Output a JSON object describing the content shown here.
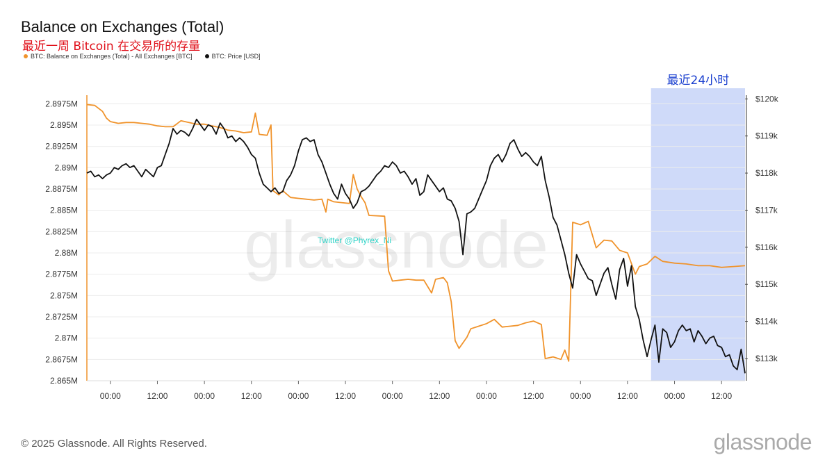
{
  "header": {
    "title": "Balance on Exchanges (Total)",
    "subtitle": "最近一周 Bitcoin 在交易所的存量"
  },
  "legend": [
    {
      "label": "BTC: Balance on Exchanges (Total) - All Exchanges [BTC]",
      "color": "#f0932b"
    },
    {
      "label": "BTC: Price [USD]",
      "color": "#111111"
    }
  ],
  "footer": {
    "copyright": "© 2025 Glassnode. All Rights Reserved.",
    "logo": "glassnode"
  },
  "watermark": {
    "text": "glassnode",
    "twitter": "Twitter @Phyrex_Ni"
  },
  "highlight": {
    "label": "最近24小时",
    "x_start_index": 52,
    "color": "#c7d3f8"
  },
  "chart_data": {
    "type": "line",
    "x_tick_labels": [
      "00:00",
      "12:00",
      "00:00",
      "12:00",
      "00:00",
      "12:00",
      "00:00",
      "12:00",
      "00:00",
      "12:00",
      "00:00",
      "12:00",
      "00:00",
      "12:00",
      "00:00",
      "12:00"
    ],
    "x_unit": "hours since start",
    "x_range": [
      0,
      168
    ],
    "left_axis": {
      "ticks": [
        "2.8975M",
        "2.895M",
        "2.8925M",
        "2.89M",
        "2.8875M",
        "2.885M",
        "2.8825M",
        "2.88M",
        "2.8775M",
        "2.875M",
        "2.8725M",
        "2.87M",
        "2.8675M",
        "2.865M"
      ],
      "range": [
        2865000,
        2898500
      ]
    },
    "right_axis": {
      "ticks": [
        "$120k",
        "$119k",
        "$118k",
        "$117k",
        "$116k",
        "$115k",
        "$114k",
        "$113k"
      ],
      "range": [
        112400,
        120100
      ]
    },
    "series": [
      {
        "name": "BTC: Balance on Exchanges (Total) - All Exchanges [BTC]",
        "axis": "left",
        "color": "#f0932b",
        "points": [
          [
            0,
            2897400
          ],
          [
            2,
            2897300
          ],
          [
            4,
            2896600
          ],
          [
            5,
            2895800
          ],
          [
            6,
            2895400
          ],
          [
            8,
            2895200
          ],
          [
            10,
            2895300
          ],
          [
            12,
            2895300
          ],
          [
            14,
            2895200
          ],
          [
            16,
            2895100
          ],
          [
            18,
            2894900
          ],
          [
            20,
            2894800
          ],
          [
            22,
            2894800
          ],
          [
            24,
            2895500
          ],
          [
            26,
            2895300
          ],
          [
            28,
            2895100
          ],
          [
            30,
            2895100
          ],
          [
            32,
            2894900
          ],
          [
            34,
            2894700
          ],
          [
            36,
            2894400
          ],
          [
            38,
            2894300
          ],
          [
            40,
            2894100
          ],
          [
            42,
            2894200
          ],
          [
            43,
            2896400
          ],
          [
            44,
            2893900
          ],
          [
            46,
            2893800
          ],
          [
            47,
            2895000
          ],
          [
            47.5,
            2887300
          ],
          [
            49,
            2886800
          ],
          [
            50,
            2887300
          ],
          [
            52,
            2886500
          ],
          [
            54,
            2886400
          ],
          [
            56,
            2886300
          ],
          [
            58,
            2886200
          ],
          [
            60,
            2886300
          ],
          [
            61,
            2884800
          ],
          [
            61.5,
            2886300
          ],
          [
            63,
            2886000
          ],
          [
            65,
            2885900
          ],
          [
            67,
            2885800
          ],
          [
            68,
            2889200
          ],
          [
            69,
            2887500
          ],
          [
            70,
            2886600
          ],
          [
            71,
            2885900
          ],
          [
            72,
            2884400
          ],
          [
            76,
            2884300
          ],
          [
            77,
            2877900
          ],
          [
            78,
            2876700
          ],
          [
            80,
            2876800
          ],
          [
            82,
            2876900
          ],
          [
            84,
            2876800
          ],
          [
            86,
            2876800
          ],
          [
            88,
            2875300
          ],
          [
            89,
            2876900
          ],
          [
            91,
            2877100
          ],
          [
            92,
            2876500
          ],
          [
            93,
            2874300
          ],
          [
            94,
            2869700
          ],
          [
            95,
            2868800
          ],
          [
            97,
            2870100
          ],
          [
            98,
            2871100
          ],
          [
            100,
            2871400
          ],
          [
            102,
            2871700
          ],
          [
            104,
            2872200
          ],
          [
            106,
            2871300
          ],
          [
            108,
            2871400
          ],
          [
            110,
            2871500
          ],
          [
            112,
            2871800
          ],
          [
            114,
            2872000
          ],
          [
            116,
            2871600
          ],
          [
            117,
            2867600
          ],
          [
            119,
            2867800
          ],
          [
            121,
            2867500
          ],
          [
            122,
            2868600
          ],
          [
            123,
            2867300
          ],
          [
            124,
            2883600
          ],
          [
            126,
            2883300
          ],
          [
            128,
            2883700
          ],
          [
            130,
            2880600
          ],
          [
            132,
            2881500
          ],
          [
            134,
            2881400
          ],
          [
            136,
            2880300
          ],
          [
            138,
            2880000
          ],
          [
            140,
            2877500
          ],
          [
            141,
            2878400
          ],
          [
            143,
            2878700
          ],
          [
            145,
            2879600
          ],
          [
            147,
            2879000
          ],
          [
            150,
            2878800
          ],
          [
            153,
            2878700
          ],
          [
            156,
            2878500
          ],
          [
            159,
            2878500
          ],
          [
            162,
            2878300
          ],
          [
            165,
            2878400
          ],
          [
            168,
            2878500
          ]
        ]
      },
      {
        "name": "BTC: Price [USD]",
        "axis": "right",
        "color": "#111111",
        "points": [
          [
            0,
            118000
          ],
          [
            1,
            118050
          ],
          [
            2,
            117900
          ],
          [
            3,
            117950
          ],
          [
            4,
            117850
          ],
          [
            5,
            117950
          ],
          [
            6,
            118000
          ],
          [
            7,
            118150
          ],
          [
            8,
            118100
          ],
          [
            9,
            118200
          ],
          [
            10,
            118250
          ],
          [
            11,
            118150
          ],
          [
            12,
            118200
          ],
          [
            13,
            118050
          ],
          [
            14,
            117900
          ],
          [
            15,
            118100
          ],
          [
            16,
            118000
          ],
          [
            17,
            117900
          ],
          [
            18,
            118150
          ],
          [
            19,
            118200
          ],
          [
            20,
            118500
          ],
          [
            21,
            118800
          ],
          [
            22,
            119200
          ],
          [
            23,
            119050
          ],
          [
            24,
            119150
          ],
          [
            25,
            119100
          ],
          [
            26,
            119000
          ],
          [
            27,
            119200
          ],
          [
            28,
            119450
          ],
          [
            29,
            119300
          ],
          [
            30,
            119150
          ],
          [
            31,
            119300
          ],
          [
            32,
            119250
          ],
          [
            33,
            119050
          ],
          [
            34,
            119350
          ],
          [
            35,
            119200
          ],
          [
            36,
            118950
          ],
          [
            37,
            119000
          ],
          [
            38,
            118850
          ],
          [
            39,
            118950
          ],
          [
            40,
            118850
          ],
          [
            41,
            118700
          ],
          [
            42,
            118500
          ],
          [
            43,
            118400
          ],
          [
            44,
            118000
          ],
          [
            45,
            117700
          ],
          [
            46,
            117600
          ],
          [
            47,
            117500
          ],
          [
            48,
            117600
          ],
          [
            49,
            117450
          ],
          [
            50,
            117500
          ],
          [
            51,
            117800
          ],
          [
            52,
            117950
          ],
          [
            53,
            118200
          ],
          [
            54,
            118600
          ],
          [
            55,
            118900
          ],
          [
            56,
            118950
          ],
          [
            57,
            118850
          ],
          [
            58,
            118900
          ],
          [
            59,
            118500
          ],
          [
            60,
            118300
          ],
          [
            61,
            118000
          ],
          [
            62,
            117700
          ],
          [
            63,
            117450
          ],
          [
            64,
            117300
          ],
          [
            65,
            117700
          ],
          [
            66,
            117450
          ],
          [
            67,
            117300
          ],
          [
            68,
            117050
          ],
          [
            69,
            117200
          ],
          [
            70,
            117500
          ],
          [
            71,
            117550
          ],
          [
            72,
            117650
          ],
          [
            73,
            117800
          ],
          [
            74,
            117950
          ],
          [
            75,
            118050
          ],
          [
            76,
            118200
          ],
          [
            77,
            118150
          ],
          [
            78,
            118300
          ],
          [
            79,
            118200
          ],
          [
            80,
            118000
          ],
          [
            81,
            118050
          ],
          [
            82,
            117900
          ],
          [
            83,
            117700
          ],
          [
            84,
            117850
          ],
          [
            85,
            117400
          ],
          [
            86,
            117500
          ],
          [
            87,
            117950
          ],
          [
            88,
            117800
          ],
          [
            89,
            117650
          ],
          [
            90,
            117500
          ],
          [
            91,
            117600
          ],
          [
            92,
            117300
          ],
          [
            93,
            117250
          ],
          [
            94,
            117050
          ],
          [
            95,
            116700
          ],
          [
            96,
            115800
          ],
          [
            97,
            116900
          ],
          [
            98,
            116950
          ],
          [
            99,
            117050
          ],
          [
            100,
            117300
          ],
          [
            101,
            117550
          ],
          [
            102,
            117800
          ],
          [
            103,
            118200
          ],
          [
            104,
            118400
          ],
          [
            105,
            118500
          ],
          [
            106,
            118300
          ],
          [
            107,
            118500
          ],
          [
            108,
            118800
          ],
          [
            109,
            118900
          ],
          [
            110,
            118650
          ],
          [
            111,
            118450
          ],
          [
            112,
            118550
          ],
          [
            113,
            118450
          ],
          [
            114,
            118300
          ],
          [
            115,
            118200
          ],
          [
            116,
            118450
          ],
          [
            117,
            117800
          ],
          [
            118,
            117350
          ],
          [
            119,
            116800
          ],
          [
            120,
            116600
          ],
          [
            121,
            116200
          ],
          [
            122,
            115800
          ],
          [
            123,
            115300
          ],
          [
            124,
            114900
          ],
          [
            125,
            115800
          ],
          [
            126,
            115550
          ],
          [
            127,
            115350
          ],
          [
            128,
            115150
          ],
          [
            129,
            115100
          ],
          [
            130,
            114700
          ],
          [
            131,
            115000
          ],
          [
            132,
            115300
          ],
          [
            133,
            115450
          ],
          [
            134,
            115000
          ],
          [
            135,
            114600
          ],
          [
            136,
            115400
          ],
          [
            137,
            115700
          ],
          [
            138,
            114950
          ],
          [
            139,
            115500
          ],
          [
            140,
            114400
          ],
          [
            141,
            114050
          ],
          [
            142,
            113500
          ],
          [
            143,
            113050
          ],
          [
            144,
            113500
          ],
          [
            145,
            113900
          ],
          [
            146,
            112900
          ],
          [
            147,
            113800
          ],
          [
            148,
            113700
          ],
          [
            149,
            113300
          ],
          [
            150,
            113450
          ],
          [
            151,
            113750
          ],
          [
            152,
            113900
          ],
          [
            153,
            113750
          ],
          [
            154,
            113800
          ],
          [
            155,
            113450
          ],
          [
            156,
            113750
          ],
          [
            157,
            113600
          ],
          [
            158,
            113400
          ],
          [
            159,
            113550
          ],
          [
            160,
            113600
          ],
          [
            161,
            113350
          ],
          [
            162,
            113300
          ],
          [
            163,
            113050
          ],
          [
            164,
            113100
          ],
          [
            165,
            112800
          ],
          [
            166,
            112700
          ],
          [
            167,
            113250
          ],
          [
            168,
            112600
          ]
        ]
      }
    ],
    "grid": "horizontal",
    "legend_position": "top-left"
  }
}
